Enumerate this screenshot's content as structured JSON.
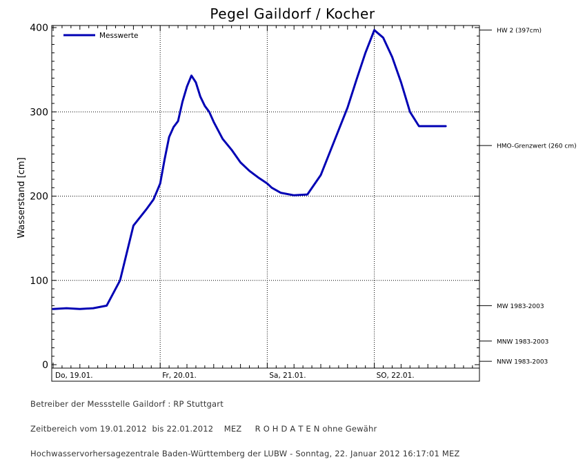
{
  "chart_data": {
    "type": "line",
    "title": "Pegel Gaildorf / Kocher",
    "ylabel": "Wasserstand [cm]",
    "ylim": [
      0,
      400
    ],
    "yticks": [
      0,
      100,
      200,
      300,
      400
    ],
    "xlim_days": [
      0,
      3.95
    ],
    "x_tick_labels": [
      "Do, 19.01.",
      "Fr, 20.01.",
      "Sa, 21.01.",
      "SO, 22.01."
    ],
    "legend": "top-left",
    "grid": true,
    "series": [
      {
        "name": "Messwerte",
        "color": "#0000b4",
        "x": [
          "19.01. 00:00",
          "19.01. 03:00",
          "19.01. 06:00",
          "19.01. 09:00",
          "19.01. 12:00",
          "19.01. 15:00",
          "19.01. 18:00",
          "19.01. 21:00",
          "19.01. 22:30",
          "20.01. 00:00",
          "20.01. 01:00",
          "20.01. 02:00",
          "20.01. 03:00",
          "20.01. 04:00",
          "20.01. 05:00",
          "20.01. 06:00",
          "20.01. 07:00",
          "20.01. 08:00",
          "20.01. 09:00",
          "20.01. 10:00",
          "20.01. 11:00",
          "20.01. 12:00",
          "20.01. 14:00",
          "20.01. 16:00",
          "20.01. 18:00",
          "20.01. 20:00",
          "20.01. 22:00",
          "21.01. 00:00",
          "21.01. 01:00",
          "21.01. 03:00",
          "21.01. 06:00",
          "21.01. 09:00",
          "21.01. 12:00",
          "21.01. 15:00",
          "21.01. 18:00",
          "21.01. 20:00",
          "21.01. 22:00",
          "22.01. 00:00",
          "22.01. 02:00",
          "22.01. 04:00",
          "22.01. 06:00",
          "22.01. 08:00",
          "22.01. 10:00",
          "22.01. 12:00",
          "22.01. 14:00",
          "22.01. 16:00"
        ],
        "x_days": [
          0.0,
          0.125,
          0.25,
          0.375,
          0.5,
          0.625,
          0.75,
          0.875,
          0.9375,
          1.0,
          1.042,
          1.083,
          1.125,
          1.167,
          1.208,
          1.25,
          1.292,
          1.333,
          1.375,
          1.417,
          1.458,
          1.5,
          1.583,
          1.667,
          1.75,
          1.833,
          1.917,
          2.0,
          2.042,
          2.125,
          2.25,
          2.375,
          2.5,
          2.625,
          2.75,
          2.833,
          2.917,
          3.0,
          3.083,
          3.167,
          3.25,
          3.333,
          3.417,
          3.5,
          3.583,
          3.667
        ],
        "values": [
          66,
          67,
          66,
          67,
          70,
          100,
          165,
          185,
          196,
          215,
          244,
          270,
          282,
          289,
          312,
          330,
          343,
          335,
          318,
          307,
          300,
          288,
          268,
          255,
          240,
          230,
          222,
          215,
          210,
          204,
          201,
          202,
          225,
          265,
          305,
          338,
          370,
          397,
          388,
          365,
          335,
          300,
          283,
          283,
          283,
          283
        ]
      }
    ],
    "reference_lines": [
      {
        "label": "HW 2 (397cm)",
        "value": 397
      },
      {
        "label": "HMO-Grenzwert (260 cm)",
        "value": 260
      },
      {
        "label": "MW 1983-2003",
        "value": 70
      },
      {
        "label": "MNW 1983-2003",
        "value": 28
      },
      {
        "label": "NNW 1983-2003",
        "value": 4
      }
    ]
  },
  "footer": {
    "line1": "Betreiber der Messstelle Gaildorf : RP Stuttgart",
    "line2": "Zeitbereich vom 19.01.2012  bis 22.01.2012    MEZ     R O H D A T E N ohne Gewähr",
    "line3": "Hochwasservorhersagezentrale Baden-Württemberg der LUBW - Sonntag, 22. Januar 2012 16:17:01 MEZ"
  }
}
